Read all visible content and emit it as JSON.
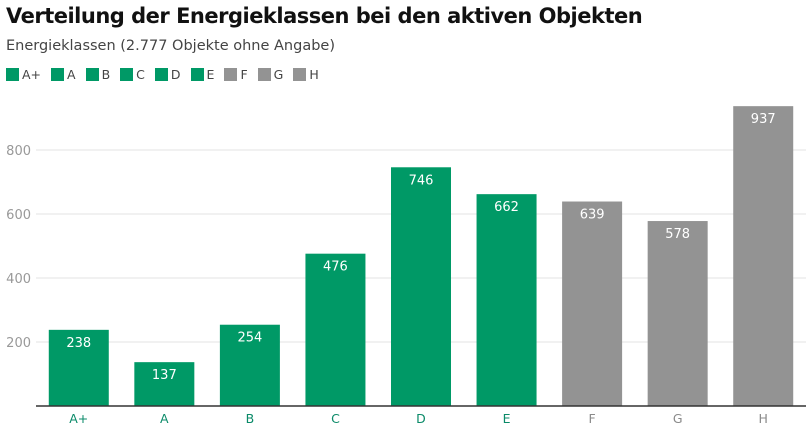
{
  "title": "Verteilung der Energieklassen bei den aktiven Objekten",
  "subtitle": "Energieklassen (2.777 Objekte ohne Angabe)",
  "colors": {
    "green": "#009966",
    "gray": "#939393",
    "green_label": "#0a8a68",
    "gray_label": "#8a8a8a"
  },
  "chart_data": {
    "type": "bar",
    "title": "Verteilung der Energieklassen bei den aktiven Objekten",
    "subtitle": "Energieklassen (2.777 Objekte ohne Angabe)",
    "categories": [
      "A+",
      "A",
      "B",
      "C",
      "D",
      "E",
      "F",
      "G",
      "H"
    ],
    "values": [
      238,
      137,
      254,
      476,
      746,
      662,
      639,
      578,
      937
    ],
    "bar_colors": [
      "green",
      "green",
      "green",
      "green",
      "green",
      "green",
      "gray",
      "gray",
      "gray"
    ],
    "yticks": [
      200,
      400,
      600,
      800
    ],
    "ylim": [
      0,
      1000
    ],
    "grid": true,
    "legend": "top-left",
    "xlabel": "",
    "ylabel": ""
  }
}
